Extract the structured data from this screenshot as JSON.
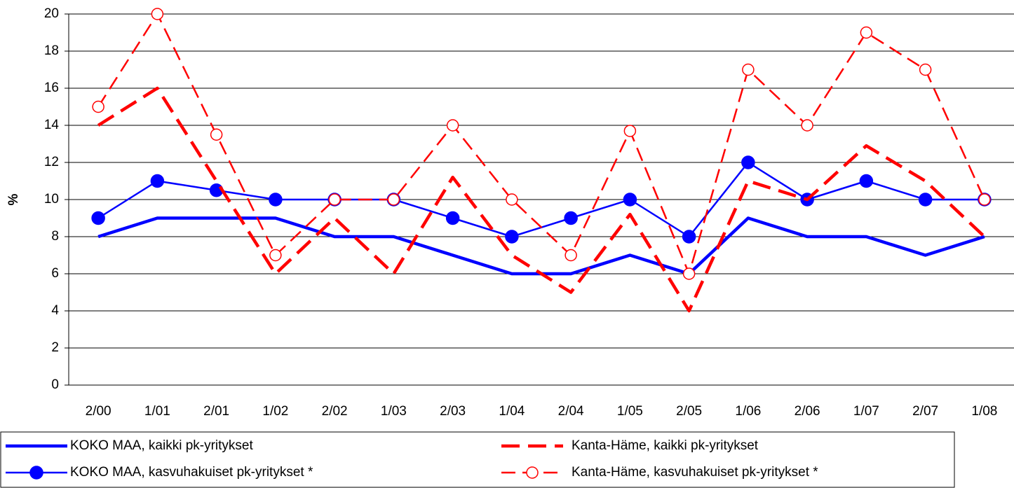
{
  "chart_data": {
    "type": "line",
    "y_label": "%",
    "categories": [
      "2/00",
      "1/01",
      "2/01",
      "1/02",
      "2/02",
      "1/03",
      "2/03",
      "1/04",
      "2/04",
      "1/05",
      "2/05",
      "1/06",
      "2/06",
      "1/07",
      "2/07",
      "1/08"
    ],
    "series": [
      {
        "name": "KOKO MAA, kaikki pk-yritykset",
        "color": "#0000ff",
        "line_style": "solid",
        "marker": "none",
        "values": [
          8,
          9,
          9,
          9,
          8,
          8,
          7,
          6,
          6,
          7,
          6,
          9,
          8,
          8,
          7,
          8
        ]
      },
      {
        "name": "KOKO MAA, kasvuhakuiset pk-yritykset *",
        "color": "#0000ff",
        "line_style": "solid",
        "marker": "filled-circle",
        "values": [
          9,
          11,
          10.5,
          10,
          10,
          10,
          9,
          8,
          9,
          10,
          8,
          12,
          10,
          11,
          10,
          10
        ]
      },
      {
        "name": "Kanta-Häme, kaikki pk-yritykset",
        "color": "#ff0000",
        "line_style": "dashed",
        "marker": "none",
        "values": [
          14,
          16,
          11,
          6,
          9,
          6,
          11.2,
          7,
          5,
          9.2,
          4,
          11,
          10,
          12.9,
          11,
          8
        ]
      },
      {
        "name": "Kanta-Häme, kasvuhakuiset pk-yritykset *",
        "color": "#ff0000",
        "line_style": "dashed",
        "marker": "open-circle",
        "values": [
          15,
          20,
          13.5,
          7,
          10,
          10,
          14,
          10,
          7,
          13.7,
          6,
          17,
          14,
          19,
          17,
          10
        ]
      }
    ],
    "ylim": [
      0,
      20
    ],
    "yticks": [
      0,
      2,
      4,
      6,
      8,
      10,
      12,
      14,
      16,
      18,
      20
    ],
    "grid": true
  }
}
